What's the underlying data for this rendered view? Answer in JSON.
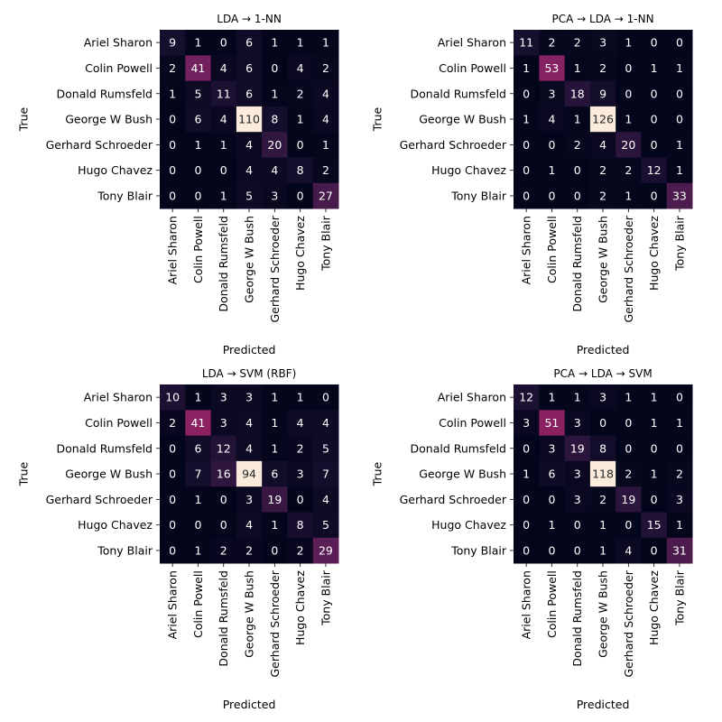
{
  "chart_data": [
    {
      "type": "heatmap",
      "title": "LDA → 1-NN",
      "xlabel": "Predicted",
      "ylabel": "True",
      "labels": [
        "Ariel Sharon",
        "Colin Powell",
        "Donald Rumsfeld",
        "George W Bush",
        "Gerhard Schroeder",
        "Hugo Chavez",
        "Tony Blair"
      ],
      "matrix": [
        [
          9,
          1,
          0,
          6,
          1,
          1,
          1
        ],
        [
          2,
          41,
          4,
          6,
          0,
          4,
          2
        ],
        [
          1,
          5,
          11,
          6,
          1,
          2,
          4
        ],
        [
          0,
          6,
          4,
          110,
          8,
          1,
          4
        ],
        [
          0,
          1,
          1,
          4,
          20,
          0,
          1
        ],
        [
          0,
          0,
          0,
          4,
          4,
          8,
          2
        ],
        [
          0,
          0,
          1,
          5,
          3,
          0,
          27
        ]
      ],
      "colormap": "rocket"
    },
    {
      "type": "heatmap",
      "title": "PCA → LDA → 1-NN",
      "xlabel": "Predicted",
      "ylabel": "True",
      "labels": [
        "Ariel Sharon",
        "Colin Powell",
        "Donald Rumsfeld",
        "George W Bush",
        "Gerhard Schroeder",
        "Hugo Chavez",
        "Tony Blair"
      ],
      "matrix": [
        [
          11,
          2,
          2,
          3,
          1,
          0,
          0
        ],
        [
          1,
          53,
          1,
          2,
          0,
          1,
          1
        ],
        [
          0,
          3,
          18,
          9,
          0,
          0,
          0
        ],
        [
          1,
          4,
          1,
          126,
          1,
          0,
          0
        ],
        [
          0,
          0,
          2,
          4,
          20,
          0,
          1
        ],
        [
          0,
          1,
          0,
          2,
          2,
          12,
          1
        ],
        [
          0,
          0,
          0,
          2,
          1,
          0,
          33
        ]
      ],
      "colormap": "rocket"
    },
    {
      "type": "heatmap",
      "title": "LDA → SVM (RBF)",
      "xlabel": "Predicted",
      "ylabel": "True",
      "labels": [
        "Ariel Sharon",
        "Colin Powell",
        "Donald Rumsfeld",
        "George W Bush",
        "Gerhard Schroeder",
        "Hugo Chavez",
        "Tony Blair"
      ],
      "matrix": [
        [
          10,
          1,
          3,
          3,
          1,
          1,
          0
        ],
        [
          2,
          41,
          3,
          4,
          1,
          4,
          4
        ],
        [
          0,
          6,
          12,
          4,
          1,
          2,
          5
        ],
        [
          0,
          7,
          16,
          94,
          6,
          3,
          7
        ],
        [
          0,
          1,
          0,
          3,
          19,
          0,
          4
        ],
        [
          0,
          0,
          0,
          4,
          1,
          8,
          5
        ],
        [
          0,
          1,
          2,
          2,
          0,
          2,
          29
        ]
      ],
      "colormap": "rocket"
    },
    {
      "type": "heatmap",
      "title": "PCA → LDA → SVM",
      "xlabel": "Predicted",
      "ylabel": "True",
      "labels": [
        "Ariel Sharon",
        "Colin Powell",
        "Donald Rumsfeld",
        "George W Bush",
        "Gerhard Schroeder",
        "Hugo Chavez",
        "Tony Blair"
      ],
      "matrix": [
        [
          12,
          1,
          1,
          3,
          1,
          1,
          0
        ],
        [
          3,
          51,
          3,
          0,
          0,
          1,
          1
        ],
        [
          0,
          3,
          19,
          8,
          0,
          0,
          0
        ],
        [
          1,
          6,
          3,
          118,
          2,
          1,
          2
        ],
        [
          0,
          0,
          3,
          2,
          19,
          0,
          3
        ],
        [
          0,
          1,
          0,
          1,
          0,
          15,
          1
        ],
        [
          0,
          0,
          0,
          1,
          4,
          0,
          31
        ]
      ],
      "colormap": "rocket"
    }
  ]
}
